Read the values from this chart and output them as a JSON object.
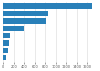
{
  "values": [
    1682,
    847,
    818,
    393,
    130,
    108,
    88,
    52
  ],
  "bar_color": "#2980b9",
  "background_color": "#ffffff",
  "xlim": [
    0,
    1800
  ],
  "bar_height": 0.72,
  "grid_color": "#d9d9d9",
  "xticks": [
    0,
    200,
    400,
    600,
    800,
    1000,
    1200,
    1400,
    1600
  ]
}
